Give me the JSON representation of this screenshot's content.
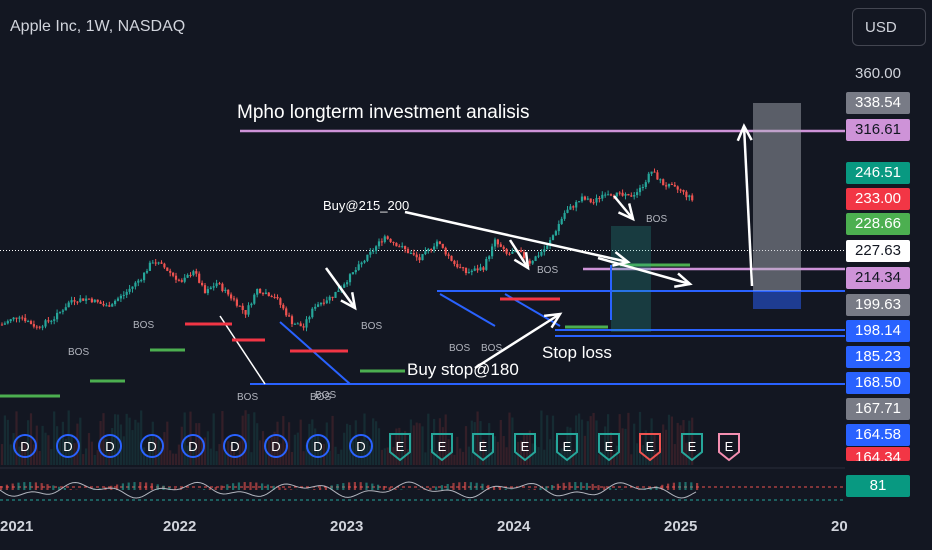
{
  "header": {
    "title": "Apple Inc, 1W, NASDAQ",
    "currency_button": "USD"
  },
  "annotations": {
    "main_title": "Mpho longterm investment analisis",
    "buy_note": "Buy@215_200",
    "buy_stop": "Buy stop@180",
    "stop_loss": "Stop loss",
    "bos": "BOS",
    "dividend": "D",
    "earnings": "E"
  },
  "indicator": {
    "value": "81"
  },
  "colors": {
    "background": "#131722",
    "up": "#26a69a",
    "down": "#ef5350",
    "structure_line": "#2962ff",
    "target_line": "#ce93d8",
    "buy_line": "#4caf50",
    "sell_line": "#f23645",
    "arrow": "#ffffff"
  },
  "chart_data": {
    "type": "candlestick",
    "title": "Apple Inc, 1W, NASDAQ",
    "x_ticks": [
      "2021",
      "2022",
      "2023",
      "2024",
      "2025",
      "20"
    ],
    "y_ticks": [
      "360.00"
    ],
    "ylim": [
      140,
      370
    ],
    "grid": false,
    "current_price": 227.63,
    "price_labels": [
      {
        "text": "338.54",
        "bg": "#787b86",
        "fg": "#ffffff"
      },
      {
        "text": "316.61",
        "bg": "#ce93d8",
        "fg": "#131722"
      },
      {
        "text": "246.51",
        "bg": "#089981",
        "fg": "#ffffff"
      },
      {
        "text": "233.00",
        "bg": "#f23645",
        "fg": "#ffffff"
      },
      {
        "text": "228.66",
        "bg": "#4caf50",
        "fg": "#ffffff"
      },
      {
        "text": "227.63",
        "bg": "#ffffff",
        "fg": "#131722"
      },
      {
        "text": "214.34",
        "bg": "#ce93d8",
        "fg": "#131722"
      },
      {
        "text": "199.63",
        "bg": "#787b86",
        "fg": "#ffffff"
      },
      {
        "text": "198.14",
        "bg": "#2962ff",
        "fg": "#ffffff"
      },
      {
        "text": "185.23",
        "bg": "#2962ff",
        "fg": "#ffffff"
      },
      {
        "text": "168.50",
        "bg": "#2962ff",
        "fg": "#ffffff"
      },
      {
        "text": "167.71",
        "bg": "#787b86",
        "fg": "#ffffff"
      },
      {
        "text": "164.58",
        "bg": "#2962ff",
        "fg": "#ffffff"
      },
      {
        "text": "164.34",
        "bg": "#f23645",
        "fg": "#ffffff"
      }
    ],
    "series": [
      {
        "name": "AAPL",
        "anchors": [
          [
            0,
            128
          ],
          [
            6,
            135
          ],
          [
            12,
            126
          ],
          [
            18,
            133
          ],
          [
            24,
            147
          ],
          [
            30,
            148
          ],
          [
            36,
            142
          ],
          [
            42,
            151
          ],
          [
            48,
            164
          ],
          [
            52,
            177
          ],
          [
            56,
            172
          ],
          [
            62,
            160
          ],
          [
            66,
            170
          ],
          [
            70,
            152
          ],
          [
            74,
            160
          ],
          [
            80,
            147
          ],
          [
            84,
            137
          ],
          [
            88,
            155
          ],
          [
            94,
            150
          ],
          [
            100,
            130
          ],
          [
            104,
            126
          ],
          [
            108,
            143
          ],
          [
            114,
            150
          ],
          [
            120,
            165
          ],
          [
            126,
            180
          ],
          [
            132,
            196
          ],
          [
            138,
            187
          ],
          [
            144,
            178
          ],
          [
            150,
            192
          ],
          [
            156,
            175
          ],
          [
            160,
            168
          ],
          [
            166,
            172
          ],
          [
            170,
            192
          ],
          [
            174,
            182
          ],
          [
            178,
            184
          ],
          [
            182,
            176
          ],
          [
            188,
            188
          ],
          [
            194,
            214
          ],
          [
            200,
            225
          ],
          [
            204,
            222
          ],
          [
            208,
            230
          ],
          [
            212,
            228
          ],
          [
            216,
            226
          ],
          [
            220,
            232
          ],
          [
            224,
            246
          ],
          [
            228,
            236
          ],
          [
            234,
            231
          ],
          [
            238,
            224
          ]
        ]
      }
    ],
    "levels": [
      {
        "name": "target",
        "value": 316.61
      },
      {
        "name": "resistance",
        "value": 214.34
      },
      {
        "name": "structure_high",
        "value": 199.63
      },
      {
        "name": "structure_low_1",
        "value": 185.23
      },
      {
        "name": "structure_low_2",
        "value": 168.5
      }
    ]
  }
}
